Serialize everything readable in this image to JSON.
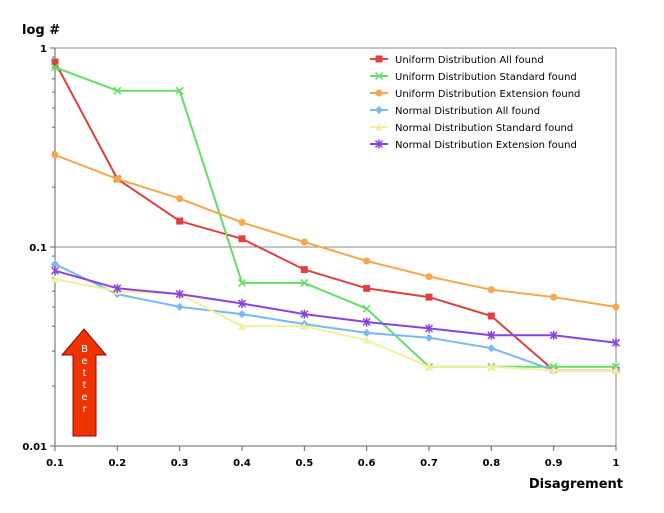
{
  "chart_data": {
    "type": "line",
    "ylabel": "log #",
    "xlabel": "Disagrement",
    "yscale": "log",
    "ylim": [
      0.01,
      1
    ],
    "xlim": [
      0.1,
      1
    ],
    "x": [
      0.1,
      0.2,
      0.3,
      0.4,
      0.5,
      0.6,
      0.7,
      0.8,
      0.9,
      1
    ],
    "x_tick_labels": [
      "0.1",
      "0.2",
      "0.3",
      "0.4",
      "0.5",
      "0.6",
      "0.7",
      "0.8",
      "0.9",
      "1"
    ],
    "y_tick_labels": [
      "1",
      "0.1",
      "0.01"
    ],
    "y_ticks": [
      1,
      0.1,
      0.01
    ],
    "grid": "horizontal",
    "legend_position": "top-right",
    "series": [
      {
        "name": "Uniform Distribution All  found",
        "color": "#e04040",
        "marker": "square",
        "values": [
          0.85,
          0.22,
          0.135,
          0.11,
          0.077,
          0.062,
          0.056,
          0.045,
          0.024,
          0.024
        ]
      },
      {
        "name": "Uniform Distribution Standard  found",
        "color": "#66dd66",
        "marker": "x",
        "values": [
          0.8,
          0.61,
          0.61,
          0.066,
          0.066,
          0.049,
          0.025,
          0.025,
          0.025,
          0.025
        ]
      },
      {
        "name": "Uniform Distribution Extension  found",
        "color": "#f5a850",
        "marker": "circle",
        "values": [
          0.29,
          0.22,
          0.175,
          0.133,
          0.106,
          0.085,
          0.071,
          0.061,
          0.056,
          0.05
        ]
      },
      {
        "name": "Normal Distribution All  found",
        "color": "#7ab8f0",
        "marker": "diamond",
        "values": [
          0.082,
          0.058,
          0.05,
          0.046,
          0.041,
          0.037,
          0.035,
          0.031,
          0.024,
          0.024
        ]
      },
      {
        "name": "Normal Distribution Standard  found",
        "color": "#f2f0a0",
        "marker": "triangle",
        "values": [
          0.069,
          0.06,
          0.058,
          0.04,
          0.04,
          0.034,
          0.025,
          0.025,
          0.024,
          0.024
        ]
      },
      {
        "name": "Normal Distribution Extension  found",
        "color": "#8844dd",
        "marker": "star",
        "values": [
          0.076,
          0.062,
          0.058,
          0.052,
          0.046,
          0.042,
          0.039,
          0.036,
          0.036,
          0.033
        ]
      }
    ],
    "annotation": {
      "label": "Better",
      "color": "#ee3300"
    }
  }
}
